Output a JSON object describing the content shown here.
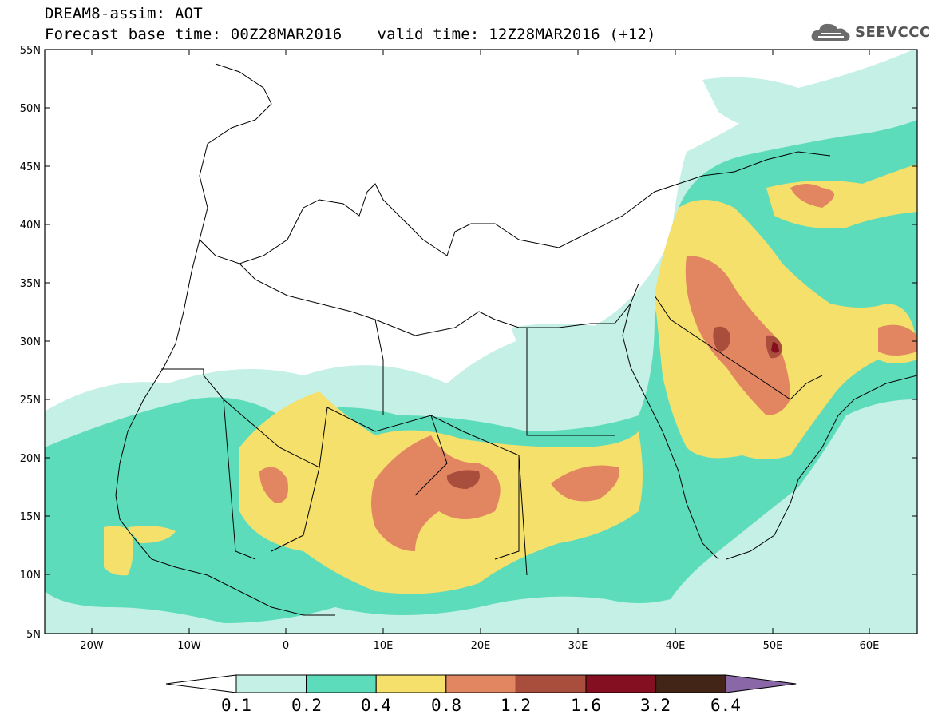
{
  "header": {
    "model_line": "DREAM8-assim: AOT",
    "base_time": "Forecast base time: 00Z28MAR2016",
    "valid_time": "valid time: 12Z28MAR2016 (+12)"
  },
  "logo": {
    "text": "SEEVCCC",
    "icon": "cloud-logo-icon"
  },
  "map": {
    "lat_labels": [
      "55N",
      "50N",
      "45N",
      "40N",
      "35N",
      "30N",
      "25N",
      "20N",
      "15N",
      "10N",
      "5N"
    ],
    "lon_labels": [
      "20W",
      "10W",
      "0",
      "10E",
      "20E",
      "30E",
      "40E",
      "50E",
      "60E"
    ],
    "colors": {
      "c01": "#c4f0e6",
      "c02": "#5ddcbc",
      "c04": "#f4e06a",
      "c08": "#e28662",
      "c12": "#a94d3d",
      "c16": "#840f20",
      "c32": "#422516",
      "c64": "#8a67a6"
    }
  },
  "colorbar": {
    "labels": [
      "0.1",
      "0.2",
      "0.4",
      "0.8",
      "1.2",
      "1.6",
      "3.2",
      "6.4"
    ],
    "colors": [
      "#ffffff",
      "#c4f0e6",
      "#5ddcbc",
      "#f4e06a",
      "#e28662",
      "#a94d3d",
      "#840f20",
      "#422516",
      "#8a67a6"
    ]
  }
}
